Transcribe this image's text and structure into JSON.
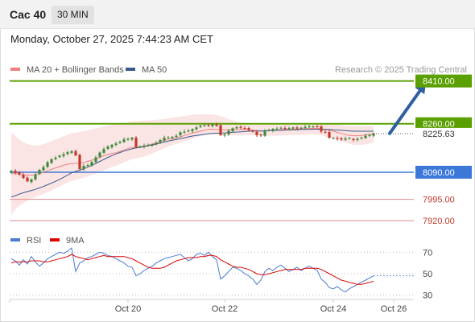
{
  "header": {
    "title": "Cac 40",
    "timeframe": "30 MIN"
  },
  "datetime": "Monday, October 27, 2025 7:44:23 AM CET",
  "credit": "Research © 2025 Trading Central",
  "colors": {
    "resistance": "#5aa000",
    "support": "#3c78d8",
    "minor_support": "#e08a8a",
    "candle_up": "#3c8c3c",
    "candle_down": "#c0392b",
    "ma20": "#f08080",
    "ma50": "#3a5a8c",
    "bollinger_fill": "#fbe1e1",
    "rsi": "#4a7bd0",
    "rsi_ma": "#e00000",
    "arrow": "#2f5fa0"
  },
  "chart_data": [
    {
      "type": "candlestick",
      "legend": [
        {
          "name": "MA 20 + Bollinger Bands",
          "color": "#f08080"
        },
        {
          "name": "MA 50",
          "color": "#3a5a8c"
        }
      ],
      "x_ticks": [
        {
          "label": "Oct 20",
          "index": 29
        },
        {
          "label": "Oct 22",
          "index": 53
        },
        {
          "label": "Oct 24",
          "index": 80
        },
        {
          "label": "Oct 26",
          "index": 95
        }
      ],
      "ylim": [
        7895,
        8440
      ],
      "levels": [
        {
          "label": "8410.00",
          "value": 8410,
          "kind": "resistance"
        },
        {
          "label": "8260.00",
          "value": 8260,
          "kind": "resistance"
        },
        {
          "label": "8090.00",
          "value": 8090,
          "kind": "support"
        },
        {
          "label": "7995.00",
          "value": 7995,
          "kind": "minor_support"
        },
        {
          "label": "7920.00",
          "value": 7920,
          "kind": "minor_support"
        }
      ],
      "last_price": {
        "label": "8225.63",
        "value": 8225.63
      },
      "forecast_arrow": {
        "from_index": 94,
        "from_value": 8226,
        "to_index": 103,
        "to_value": 8405
      },
      "closes": [
        8095,
        8088,
        8082,
        8070,
        8058,
        8065,
        8082,
        8098,
        8108,
        8125,
        8136,
        8141,
        8148,
        8153,
        8160,
        8164,
        8149,
        8101,
        8112,
        8115,
        8126,
        8142,
        8159,
        8171,
        8180,
        8186,
        8191,
        8197,
        8205,
        8207,
        8211,
        8178,
        8180,
        8183,
        8185,
        8187,
        8193,
        8203,
        8211,
        8212,
        8214,
        8218,
        8230,
        8232,
        8236,
        8241,
        8247,
        8253,
        8255,
        8254,
        8258,
        8253,
        8220,
        8222,
        8236,
        8244,
        8248,
        8246,
        8244,
        8238,
        8232,
        8220,
        8219,
        8235,
        8238,
        8242,
        8243,
        8246,
        8242,
        8245,
        8247,
        8243,
        8246,
        8249,
        8251,
        8251,
        8249,
        8233,
        8230,
        8211,
        8210,
        8207,
        8205,
        8208,
        8209,
        8203,
        8207,
        8211,
        8218,
        8220,
        8226
      ],
      "ma20": [
        8085,
        8085,
        8083,
        8081,
        8080,
        8080,
        8081,
        8085,
        8090,
        8095,
        8100,
        8105,
        8110,
        8114,
        8118,
        8120,
        8121,
        8122,
        8124,
        8128,
        8132,
        8137,
        8142,
        8148,
        8152,
        8156,
        8158,
        8163,
        8168,
        8173,
        8177,
        8178,
        8179,
        8182,
        8185,
        8189,
        8193,
        8197,
        8201,
        8205,
        8208,
        8210,
        8214,
        8219,
        8223,
        8227,
        8231,
        8234,
        8237,
        8240,
        8241,
        8240,
        8239,
        8239,
        8239,
        8240,
        8240,
        8241,
        8240,
        8239,
        8237,
        8235,
        8234,
        8235,
        8236,
        8237,
        8238,
        8239,
        8240,
        8240,
        8241,
        8241,
        8242,
        8243,
        8244,
        8244,
        8244,
        8242,
        8240,
        8237,
        8234,
        8230,
        8226,
        8222,
        8219,
        8218,
        8218,
        8219,
        8221,
        8223,
        8225
      ],
      "bb_upper": [
        8230,
        8218,
        8205,
        8195,
        8189,
        8185,
        8183,
        8185,
        8189,
        8194,
        8199,
        8205,
        8210,
        8216,
        8222,
        8227,
        8229,
        8231,
        8234,
        8237,
        8240,
        8244,
        8248,
        8251,
        8254,
        8256,
        8258,
        8260,
        8262,
        8265,
        8268,
        8269,
        8270,
        8271,
        8272,
        8273,
        8274,
        8275,
        8277,
        8279,
        8281,
        8283,
        8285,
        8287,
        8289,
        8291,
        8293,
        8293,
        8293,
        8293,
        8293,
        8290,
        8287,
        8282,
        8276,
        8272,
        8267,
        8264,
        8262,
        8261,
        8260,
        8259,
        8258,
        8258,
        8258,
        8258,
        8258,
        8258,
        8258,
        8258,
        8258,
        8258,
        8258,
        8258,
        8259,
        8259,
        8259,
        8260,
        8260,
        8259,
        8258,
        8257,
        8255,
        8254,
        8253,
        8252,
        8252,
        8252,
        8252,
        8252,
        8252
      ],
      "bb_lower": [
        7940,
        7960,
        7972,
        7982,
        7990,
        7997,
        8003,
        8009,
        8014,
        8020,
        8026,
        8033,
        8040,
        8047,
        8054,
        8059,
        8063,
        8067,
        8071,
        8075,
        8080,
        8085,
        8090,
        8096,
        8102,
        8108,
        8113,
        8118,
        8124,
        8130,
        8136,
        8139,
        8141,
        8145,
        8150,
        8156,
        8162,
        8168,
        8174,
        8180,
        8185,
        8189,
        8193,
        8198,
        8203,
        8208,
        8212,
        8216,
        8220,
        8222,
        8223,
        8222,
        8221,
        8220,
        8219,
        8219,
        8219,
        8219,
        8220,
        8220,
        8220,
        8219,
        8218,
        8218,
        8218,
        8218,
        8218,
        8219,
        8219,
        8220,
        8220,
        8221,
        8221,
        8222,
        8223,
        8223,
        8223,
        8220,
        8216,
        8212,
        8208,
        8204,
        8199,
        8194,
        8189,
        8186,
        8185,
        8186,
        8188,
        8191,
        8195
      ],
      "ma50": [
        8003,
        8008,
        8013,
        8018,
        8022,
        8026,
        8030,
        8035,
        8040,
        8046,
        8052,
        8058,
        8065,
        8072,
        8080,
        8088,
        8093,
        8097,
        8102,
        8108,
        8114,
        8121,
        8128,
        8135,
        8142,
        8148,
        8154,
        8159,
        8164,
        8168,
        8172,
        8175,
        8177,
        8180,
        8183,
        8186,
        8189,
        8192,
        8196,
        8199,
        8202,
        8205,
        8208,
        8211,
        8214,
        8217,
        8219,
        8221,
        8223,
        8225,
        8226,
        8227,
        8227,
        8228,
        8229,
        8230,
        8231,
        8232,
        8233,
        8234,
        8235,
        8235,
        8235,
        8235,
        8236,
        8236,
        8237,
        8237,
        8238,
        8238,
        8239,
        8239,
        8240,
        8240,
        8240,
        8241,
        8241,
        8241,
        8240,
        8240,
        8239,
        8238,
        8237,
        8236,
        8235,
        8234,
        8234,
        8234,
        8234,
        8234,
        8234
      ]
    },
    {
      "type": "line",
      "legend": [
        {
          "name": "RSI",
          "color": "#4a7bd0"
        },
        {
          "name": "9MA",
          "color": "#e00000"
        }
      ],
      "ylim": [
        20,
        80
      ],
      "y_ticks": [
        30,
        50,
        70
      ],
      "rsi": [
        64,
        62,
        58,
        63,
        59,
        66,
        61,
        57,
        60,
        64,
        66,
        68,
        70,
        69,
        71,
        74,
        52,
        60,
        62,
        65,
        66,
        68,
        70,
        69,
        67,
        66,
        64,
        62,
        60,
        57,
        56,
        48,
        50,
        53,
        55,
        57,
        60,
        62,
        64,
        65,
        66,
        67,
        68,
        65,
        62,
        64,
        68,
        69,
        67,
        70,
        66,
        63,
        45,
        48,
        52,
        56,
        55,
        53,
        50,
        48,
        45,
        40,
        44,
        52,
        55,
        53,
        56,
        58,
        55,
        52,
        54,
        56,
        53,
        55,
        57,
        55,
        53,
        45,
        42,
        37,
        36,
        38,
        35,
        33,
        36,
        38,
        40,
        42,
        44,
        46,
        48
      ],
      "ma9": [
        60,
        61,
        61,
        61,
        61,
        62,
        62,
        62,
        61,
        61,
        62,
        63,
        64,
        65,
        66,
        68,
        66,
        65,
        64,
        63,
        64,
        65,
        66,
        67,
        66,
        66,
        66,
        66,
        66,
        65,
        64,
        62,
        60,
        58,
        56,
        55,
        55,
        55,
        56,
        58,
        60,
        62,
        63,
        64,
        65,
        65,
        65,
        66,
        66,
        67,
        67,
        66,
        63,
        61,
        59,
        57,
        56,
        56,
        55,
        54,
        52,
        50,
        49,
        49,
        50,
        51,
        52,
        53,
        54,
        54,
        54,
        54,
        54,
        55,
        55,
        55,
        55,
        54,
        52,
        50,
        48,
        46,
        44,
        43,
        42,
        41,
        40,
        40,
        41,
        42,
        43
      ]
    }
  ]
}
